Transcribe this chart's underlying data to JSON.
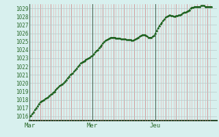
{
  "bg_color": "#d8f0ee",
  "plot_bg_color": "#d8f0ee",
  "line_color": "#1a5e1a",
  "marker_color": "#1a5e1a",
  "grid_h_color": "#b8c8c8",
  "grid_v_minor_color": "#e8aaaa",
  "grid_v_major_color": "#cc8888",
  "vline_color": "#556655",
  "axis_color": "#2a4a2a",
  "tick_color": "#cc8888",
  "text_color": "#2a6a2a",
  "ylim_min": 1015.5,
  "ylim_max": 1029.5,
  "xlim_min": 0,
  "xlim_max": 143,
  "yticks": [
    1016,
    1017,
    1018,
    1019,
    1020,
    1021,
    1022,
    1023,
    1024,
    1025,
    1026,
    1027,
    1028,
    1029
  ],
  "day_positions": [
    0,
    48,
    96
  ],
  "day_labels": [
    "Mar",
    "Mer",
    "Jeu"
  ],
  "y_values": [
    1016.0,
    1016.1,
    1016.3,
    1016.5,
    1016.8,
    1017.0,
    1017.2,
    1017.5,
    1017.7,
    1017.8,
    1017.9,
    1018.0,
    1018.1,
    1018.2,
    1018.3,
    1018.5,
    1018.6,
    1018.7,
    1018.9,
    1019.0,
    1019.2,
    1019.4,
    1019.5,
    1019.7,
    1019.8,
    1019.9,
    1020.0,
    1020.2,
    1020.4,
    1020.6,
    1020.8,
    1021.0,
    1021.1,
    1021.2,
    1021.4,
    1021.6,
    1021.8,
    1022.0,
    1022.2,
    1022.4,
    1022.5,
    1022.6,
    1022.7,
    1022.8,
    1022.9,
    1023.0,
    1023.1,
    1023.2,
    1023.3,
    1023.5,
    1023.7,
    1023.9,
    1024.0,
    1024.2,
    1024.4,
    1024.6,
    1024.8,
    1025.0,
    1025.1,
    1025.2,
    1025.3,
    1025.4,
    1025.5,
    1025.5,
    1025.5,
    1025.5,
    1025.4,
    1025.4,
    1025.4,
    1025.4,
    1025.3,
    1025.3,
    1025.3,
    1025.3,
    1025.2,
    1025.2,
    1025.2,
    1025.2,
    1025.1,
    1025.1,
    1025.2,
    1025.3,
    1025.4,
    1025.5,
    1025.6,
    1025.7,
    1025.8,
    1025.8,
    1025.8,
    1025.7,
    1025.6,
    1025.5,
    1025.5,
    1025.5,
    1025.6,
    1025.7,
    1026.0,
    1026.3,
    1026.6,
    1026.9,
    1027.1,
    1027.3,
    1027.5,
    1027.7,
    1027.9,
    1028.0,
    1028.1,
    1028.2,
    1028.1,
    1028.1,
    1028.0,
    1028.0,
    1028.1,
    1028.1,
    1028.2,
    1028.2,
    1028.3,
    1028.4,
    1028.5,
    1028.5,
    1028.6,
    1028.7,
    1028.8,
    1029.0,
    1029.1,
    1029.1,
    1029.2,
    1029.2,
    1029.2,
    1029.2,
    1029.2,
    1029.3,
    1029.3,
    1029.3,
    1029.2,
    1029.2,
    1029.2,
    1029.2,
    1029.2,
    1029.2
  ]
}
